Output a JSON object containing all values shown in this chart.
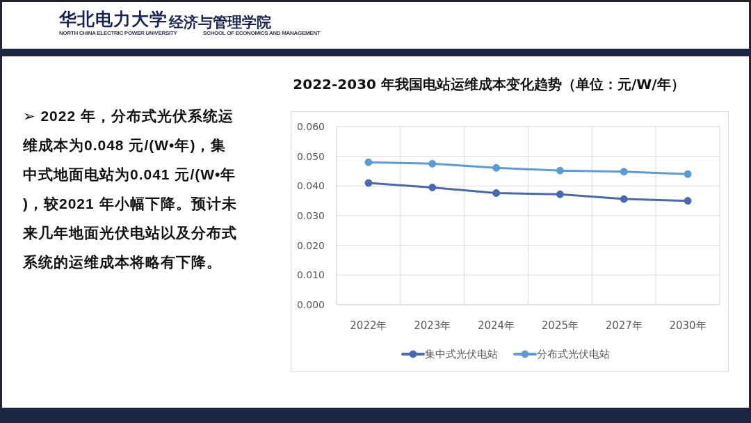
{
  "chart_data": {
    "type": "line",
    "title": "2022-2030 年我国电站运维成本变化趋势（单位：元/W/年）",
    "categories": [
      "2022年",
      "2023年",
      "2024年",
      "2025年",
      "2027年",
      "2030年"
    ],
    "series": [
      {
        "name": "集中式光伏电站",
        "color": "#4a68b0",
        "values": [
          0.041,
          0.0395,
          0.0376,
          0.0372,
          0.0356,
          0.035
        ]
      },
      {
        "name": "分布式光伏电站",
        "color": "#5b9bd5",
        "values": [
          0.048,
          0.0475,
          0.0461,
          0.0452,
          0.0448,
          0.044
        ]
      }
    ],
    "ylim": [
      0,
      0.06
    ],
    "yticks": [
      {
        "value": 0,
        "label": "0.000"
      },
      {
        "value": 0.01,
        "label": "0.010"
      },
      {
        "value": 0.02,
        "label": "0.020"
      },
      {
        "value": 0.03,
        "label": "0.030"
      },
      {
        "value": 0.04,
        "label": "0.040"
      },
      {
        "value": 0.05,
        "label": "0.050"
      },
      {
        "value": 0.06,
        "label": "0.060"
      }
    ],
    "grid": true,
    "legend": "bottom",
    "marker": "circle",
    "line_style": "solid",
    "annotations": [
      "➢ 2022 年，分布式光伏系统运维成本为0.048 元/(W•年)，集中式地面电站为0.041 元/(W•年)，较2021 年小幅下降。预计未来几年地面光伏电站以及分布式系统的运维成本将略有下降。",
      "华北电力大学",
      "经济与管理学院",
      "NORTH CHINA ELECTRIC POWER UNIVERSITY",
      "SCHOOL OF ECONOMICS AND MANAGEMENT"
    ]
  }
}
